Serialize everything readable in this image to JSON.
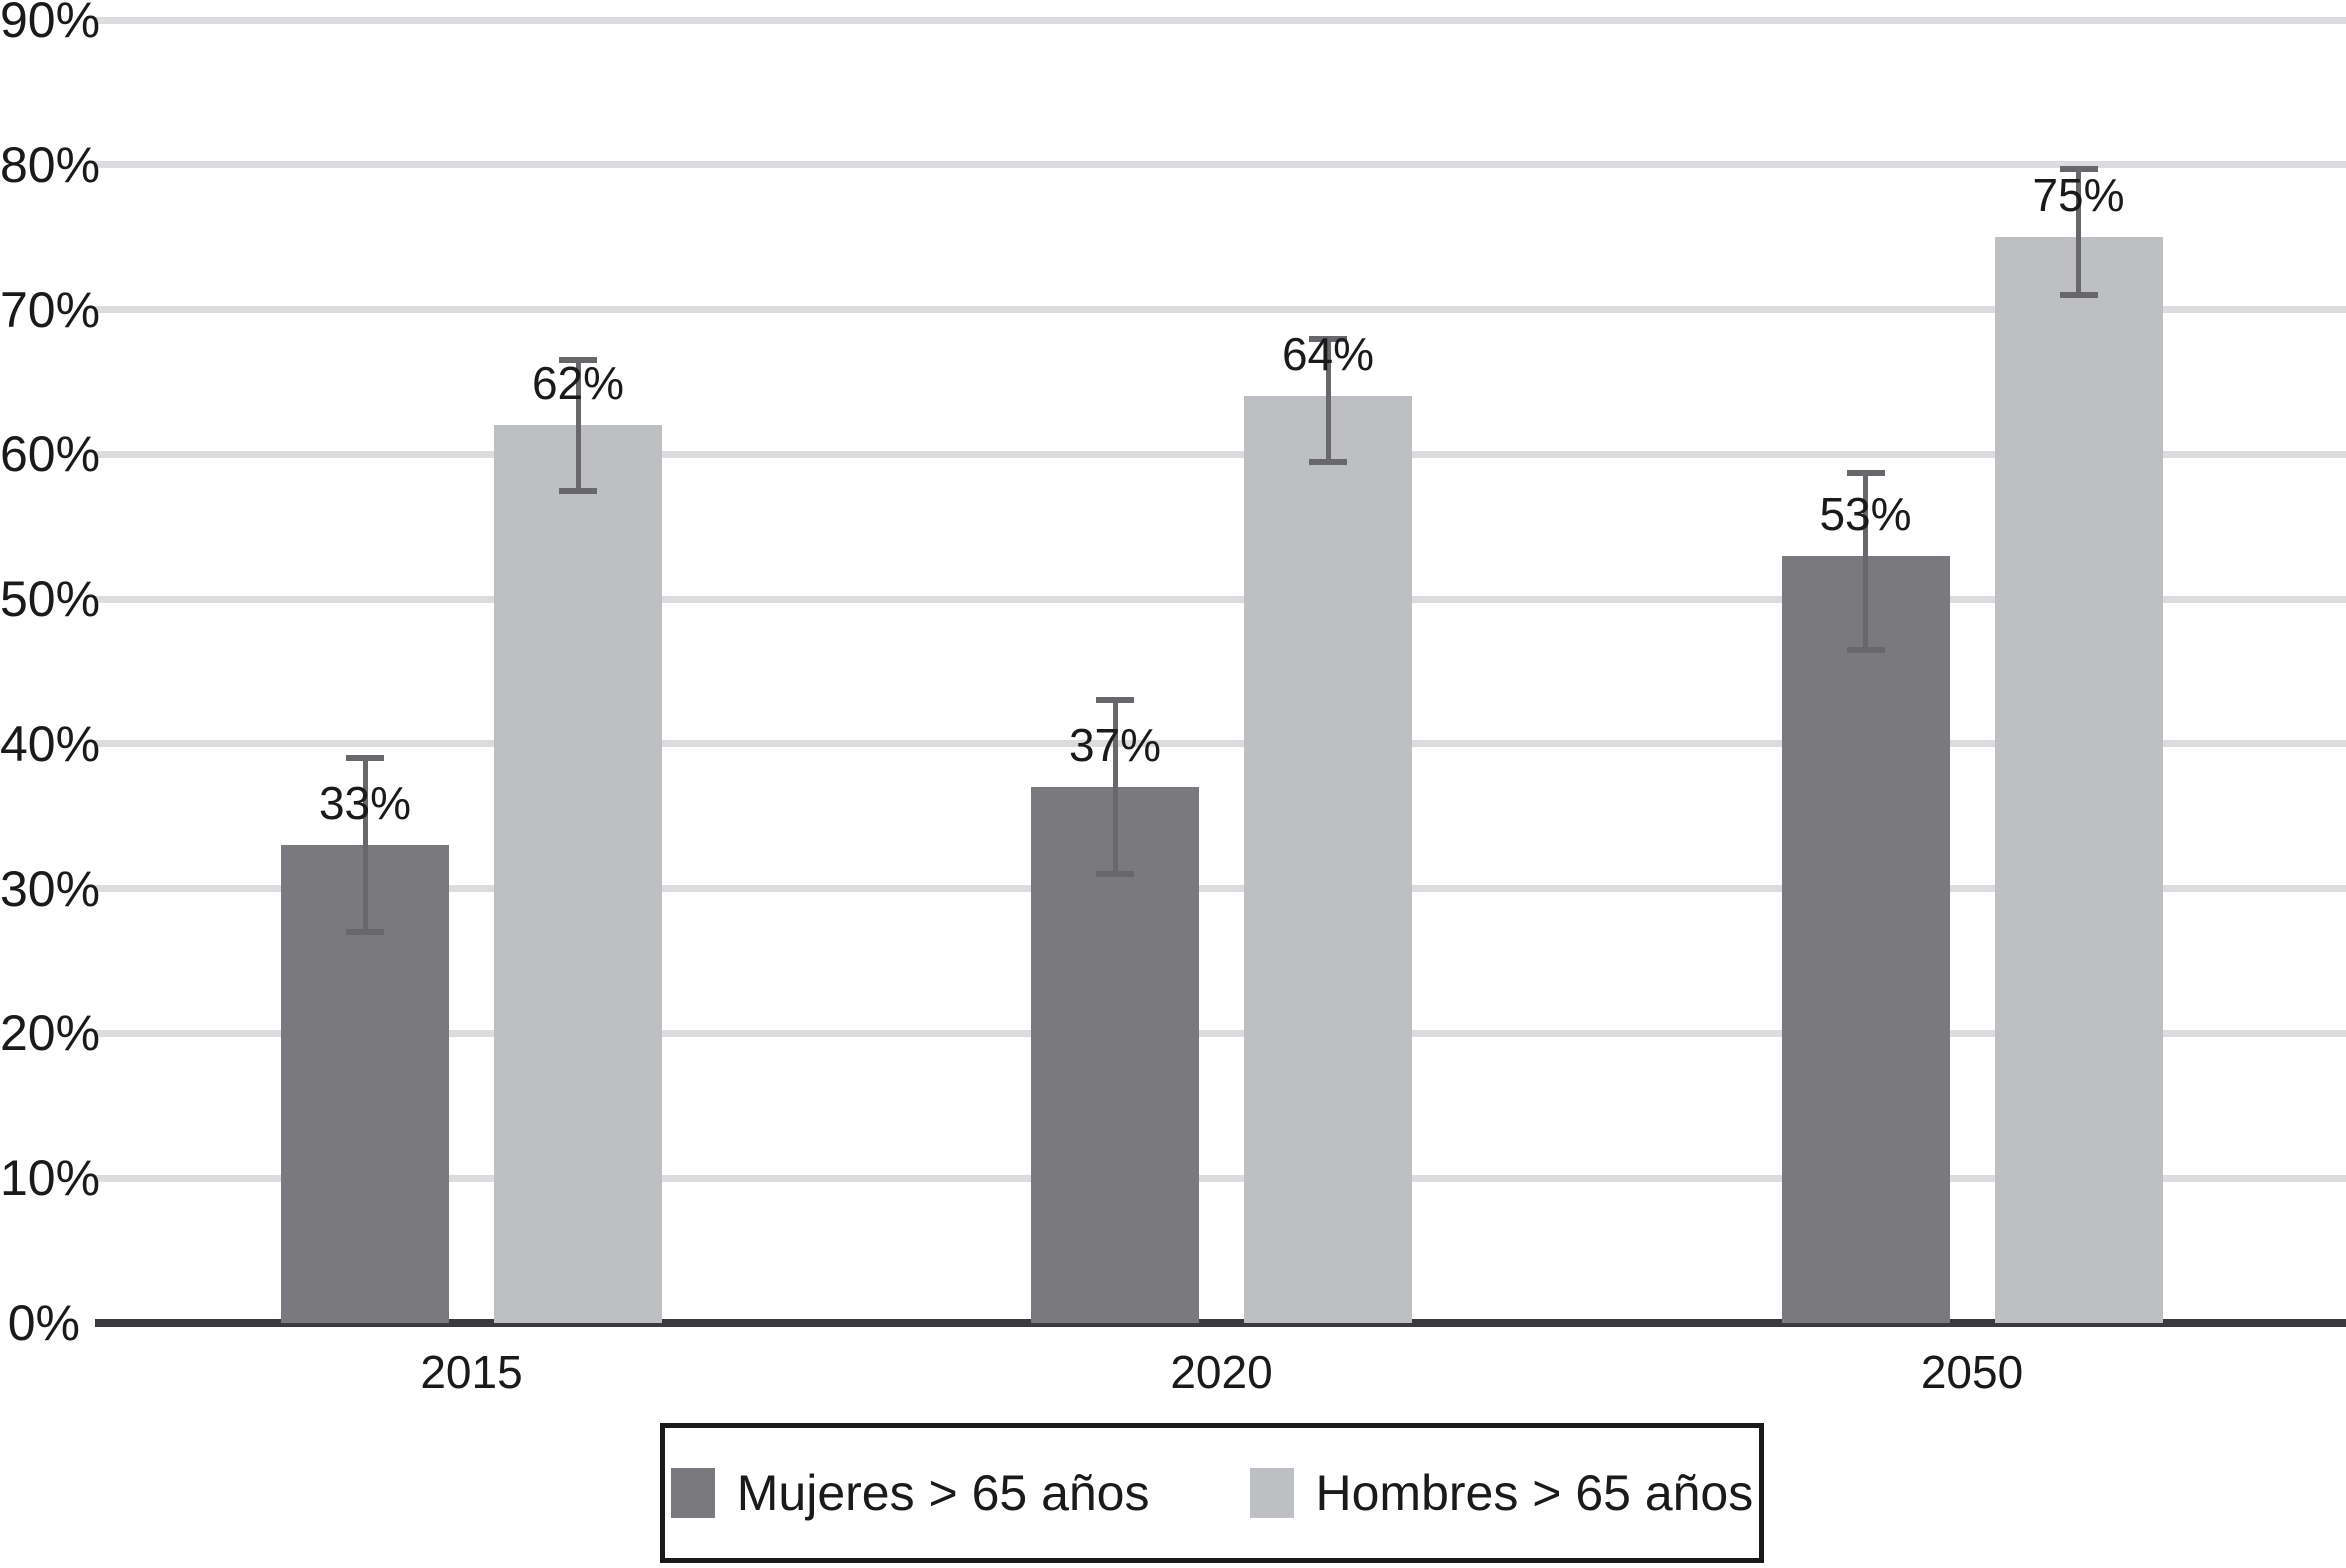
{
  "chart_data": {
    "type": "bar",
    "title": "",
    "xlabel": "",
    "ylabel": "",
    "categories": [
      "2015",
      "2020",
      "2050"
    ],
    "series": [
      {
        "key": "mujeres",
        "name": "Mujeres > 65 años",
        "color": "#7a7a7e",
        "values": [
          33,
          37,
          53
        ],
        "labels": [
          "33%",
          "37%",
          "53%"
        ],
        "error_low": [
          27,
          31,
          46.5
        ],
        "error_high": [
          39,
          43,
          58.7
        ]
      },
      {
        "key": "hombres",
        "name": "Hombres > 65 años",
        "color": "#bdbfc3",
        "values": [
          62,
          64,
          75
        ],
        "labels": [
          "62%",
          "64%",
          "75%"
        ],
        "error_low": [
          57.5,
          59.5,
          71
        ],
        "error_high": [
          66.5,
          68,
          79.7
        ]
      }
    ],
    "ylim": [
      0,
      90
    ],
    "y_ticks": [
      0,
      10,
      20,
      30,
      40,
      50,
      60,
      70,
      80,
      90
    ],
    "y_tick_labels": [
      "0%",
      "10%",
      "20%",
      "30%",
      "40%",
      "50%",
      "60%",
      "70%",
      "80%",
      "90%"
    ],
    "grid": "horizontal",
    "error_bars": true,
    "legend_position": "bottom-boxed",
    "colors": {
      "gridline": "#dcdcde",
      "axis": "#3a3a3c",
      "error_bar": "#68686c",
      "text": "#1a1a1a",
      "background": "#ffffff"
    }
  }
}
